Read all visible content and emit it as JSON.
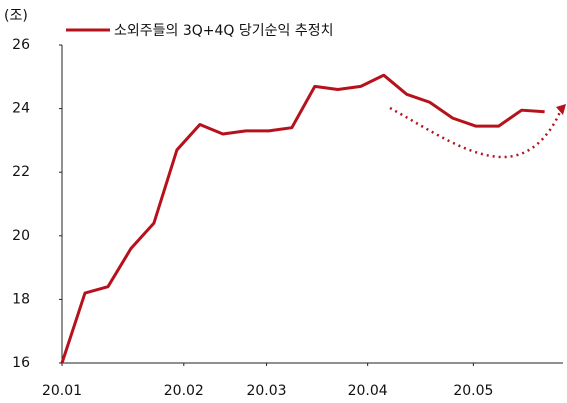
{
  "chart_data": {
    "type": "line",
    "y_unit": "(조)",
    "x": [
      0,
      1,
      2,
      3,
      4,
      5,
      6,
      7,
      8,
      9,
      10,
      11,
      12,
      13,
      14,
      15,
      16,
      17,
      18,
      19,
      20,
      21
    ],
    "series": [
      {
        "name": "소외주들의 3Q+4Q 당기순익 추정치",
        "color": "#b5121b",
        "values": [
          16.0,
          18.2,
          18.4,
          19.6,
          20.4,
          22.7,
          23.5,
          23.2,
          23.3,
          23.3,
          23.4,
          24.7,
          24.6,
          24.7,
          25.05,
          24.45,
          24.2,
          23.7,
          23.45,
          23.45,
          23.95,
          23.9
        ]
      }
    ],
    "xlim": [
      0,
      21.8
    ],
    "xticks": [
      {
        "value": 0,
        "label": "20.01"
      },
      {
        "value": 5.3,
        "label": "20.02"
      },
      {
        "value": 8.9,
        "label": "20.03"
      },
      {
        "value": 13.3,
        "label": "20.04"
      },
      {
        "value": 17.9,
        "label": "20.05"
      }
    ],
    "ylim": [
      16,
      26
    ],
    "yticks": [
      16,
      18,
      20,
      22,
      24,
      26
    ]
  }
}
